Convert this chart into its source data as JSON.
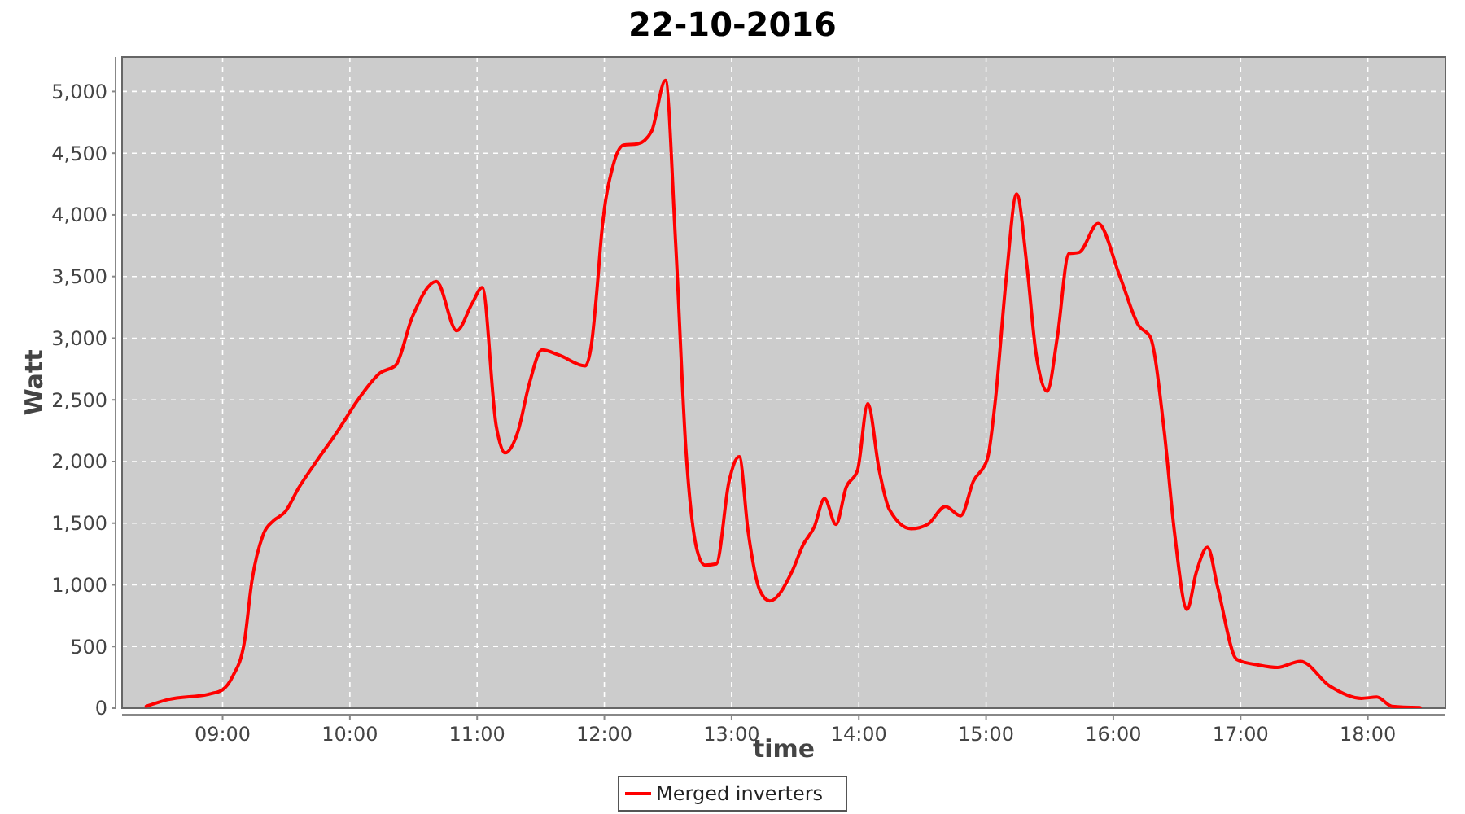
{
  "chart_data": {
    "type": "line",
    "title": "22-10-2016",
    "xlabel": "time",
    "ylabel": "Watt",
    "xlim": [
      8.21,
      18.61
    ],
    "ylim": [
      0,
      5280
    ],
    "xticks": [
      {
        "value": 9,
        "label": "09:00"
      },
      {
        "value": 10,
        "label": "10:00"
      },
      {
        "value": 11,
        "label": "11:00"
      },
      {
        "value": 12,
        "label": "12:00"
      },
      {
        "value": 13,
        "label": "13:00"
      },
      {
        "value": 14,
        "label": "14:00"
      },
      {
        "value": 15,
        "label": "15:00"
      },
      {
        "value": 16,
        "label": "16:00"
      },
      {
        "value": 17,
        "label": "17:00"
      },
      {
        "value": 18,
        "label": "18:00"
      }
    ],
    "yticks": [
      0,
      500,
      {
        "value": 1000,
        "label": "1,000"
      },
      {
        "value": 1500,
        "label": "1,500"
      },
      {
        "value": 2000,
        "label": "2,000"
      },
      {
        "value": 2500,
        "label": "2,500"
      },
      {
        "value": 3000,
        "label": "3,000"
      },
      {
        "value": 3500,
        "label": "3,500"
      },
      {
        "value": 4000,
        "label": "4,000"
      },
      {
        "value": 4500,
        "label": "4,500"
      },
      {
        "value": 5000,
        "label": "5,000"
      }
    ],
    "grid": true,
    "legend": "bottom",
    "line_style": "solid",
    "x": [
      8.4,
      8.57,
      8.91,
      9.0,
      9.08,
      9.17,
      9.23,
      9.32,
      9.4,
      9.49,
      9.6,
      9.75,
      9.9,
      10.07,
      10.24,
      10.36,
      10.49,
      10.68,
      10.84,
      10.96,
      11.04,
      11.15,
      11.22,
      11.32,
      11.41,
      11.51,
      11.64,
      11.85,
      11.9,
      11.94,
      11.98,
      12.07,
      12.15,
      12.26,
      12.37,
      12.48,
      12.56,
      12.64,
      12.73,
      12.79,
      12.88,
      12.98,
      13.06,
      13.13,
      13.22,
      13.3,
      13.48,
      13.56,
      13.65,
      13.73,
      13.82,
      13.9,
      13.99,
      14.07,
      14.16,
      14.24,
      14.41,
      14.54,
      14.68,
      14.8,
      14.9,
      15.01,
      15.07,
      15.16,
      15.24,
      15.32,
      15.39,
      15.48,
      15.56,
      15.65,
      15.73,
      15.88,
      16.05,
      16.2,
      16.29,
      16.4,
      16.48,
      16.58,
      16.65,
      16.74,
      16.82,
      16.97,
      17.14,
      17.29,
      17.47,
      17.7,
      17.95,
      18.07,
      18.19,
      18.41
    ],
    "series": [
      {
        "name": "Merged inverters",
        "color": "#ff0000",
        "values": [
          15,
          70,
          118,
          150,
          260,
          530,
          1030,
          1410,
          1520,
          1590,
          1790,
          2020,
          2240,
          2510,
          2720,
          2780,
          3170,
          3460,
          3060,
          3280,
          3410,
          2290,
          2070,
          2240,
          2630,
          2905,
          2865,
          2775,
          2960,
          3370,
          3865,
          4405,
          4565,
          4575,
          4675,
          5090,
          3775,
          2110,
          1275,
          1160,
          1170,
          1840,
          2040,
          1430,
          960,
          870,
          1120,
          1320,
          1470,
          1700,
          1490,
          1790,
          1930,
          2470,
          1930,
          1610,
          1455,
          1490,
          1635,
          1560,
          1840,
          2020,
          2470,
          3505,
          4170,
          3595,
          2895,
          2570,
          3010,
          3685,
          3695,
          3930,
          3505,
          3100,
          3010,
          2245,
          1430,
          800,
          1095,
          1305,
          980,
          395,
          350,
          330,
          380,
          180,
          80,
          90,
          15,
          5
        ]
      }
    ]
  }
}
